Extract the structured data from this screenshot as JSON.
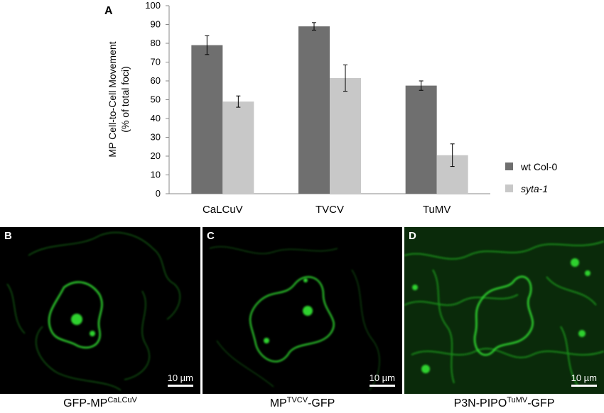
{
  "chart_data": {
    "type": "bar",
    "panel_letter": "A",
    "ylabel_line1": "MP Cell-to-Cell Movement",
    "ylabel_line2": "(% of total foci)",
    "ylim": [
      0,
      100
    ],
    "yticks": [
      0,
      10,
      20,
      30,
      40,
      50,
      60,
      70,
      80,
      90,
      100
    ],
    "categories": [
      "CaLCuV",
      "TVCV",
      "TuMV"
    ],
    "grid": false,
    "legend_position": "right",
    "series": [
      {
        "name": "wt Col-0",
        "color": "#6f6f6f",
        "values": [
          79,
          89,
          57.5
        ],
        "errors": [
          5,
          2,
          2.5
        ]
      },
      {
        "name": "syta-1",
        "color": "#c8c8c8",
        "values": [
          49,
          61.5,
          20.5
        ],
        "errors": [
          3,
          7,
          6
        ]
      }
    ]
  },
  "panels": [
    {
      "letter": "B",
      "scale": "10 µm",
      "caption_main": "GFP-MP",
      "caption_sup": "CaLCuV",
      "caption_tail": ""
    },
    {
      "letter": "C",
      "scale": "10 µm",
      "caption_main": "MP",
      "caption_sup": "TVCV",
      "caption_tail": "-GFP"
    },
    {
      "letter": "D",
      "scale": "10 µm",
      "caption_main": "P3N-PIPO",
      "caption_sup": "TuMV",
      "caption_tail": "-GFP"
    }
  ],
  "colors": {
    "fluorescence": "#2fd12f",
    "background": "#000000"
  }
}
